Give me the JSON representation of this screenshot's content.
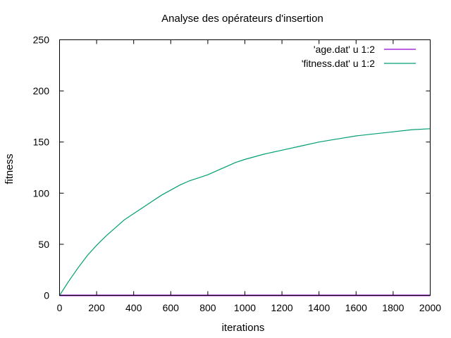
{
  "chart_data": {
    "type": "line",
    "title": "Analyse des opérateurs d'insertion",
    "xlabel": "iterations",
    "ylabel": "fitness",
    "xlim": [
      0,
      2000
    ],
    "ylim": [
      0,
      250
    ],
    "xticks": [
      "0",
      "200",
      "400",
      "600",
      "800",
      "1000",
      "1200",
      "1400",
      "1600",
      "1800",
      "2000"
    ],
    "yticks": [
      "0",
      "50",
      "100",
      "150",
      "200",
      "250"
    ],
    "grid": false,
    "legend_position": "top-right",
    "series": [
      {
        "name": "'age.dat' u 1:2",
        "color": "#9400d3",
        "x": [
          0,
          200,
          400,
          600,
          800,
          1000,
          1200,
          1400,
          1600,
          1800,
          2000
        ],
        "y": [
          0,
          0,
          0,
          0,
          0,
          0,
          0,
          0,
          0,
          0,
          0
        ]
      },
      {
        "name": "'fitness.dat' u 1:2",
        "color": "#009e73",
        "x": [
          0,
          50,
          100,
          150,
          200,
          250,
          300,
          350,
          400,
          450,
          500,
          550,
          600,
          650,
          700,
          750,
          800,
          850,
          900,
          950,
          1000,
          1100,
          1200,
          1300,
          1400,
          1500,
          1600,
          1700,
          1800,
          1900,
          2000
        ],
        "y": [
          0,
          14,
          27,
          39,
          49,
          58,
          66,
          74,
          80,
          86,
          92,
          98,
          103,
          108,
          112,
          115,
          118,
          122,
          126,
          130,
          133,
          138,
          142,
          146,
          150,
          153,
          156,
          158,
          160,
          162,
          163
        ]
      }
    ]
  }
}
